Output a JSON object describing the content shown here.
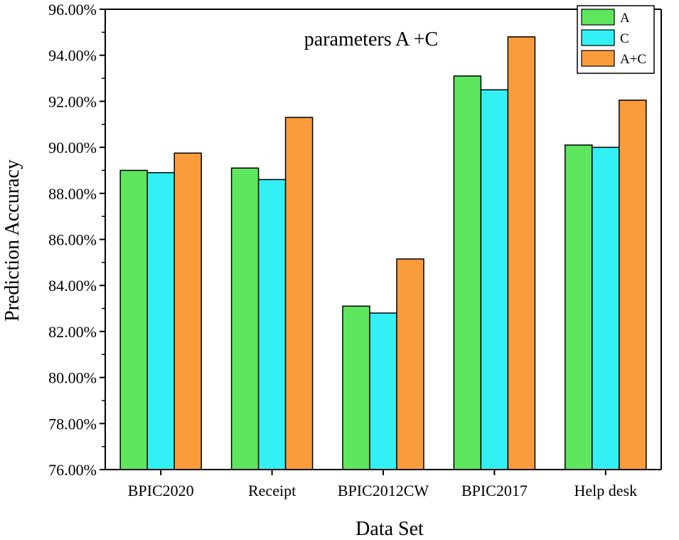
{
  "chart_data": {
    "type": "bar",
    "title": "parameters A +C",
    "xlabel": "Data Set",
    "ylabel": "Prediction Accuracy",
    "categories": [
      "BPIC2020",
      "Receipt",
      "BPIC2012CW",
      "BPIC2017",
      "Help desk"
    ],
    "series": [
      {
        "name": "A",
        "color": "#5ee65e",
        "values": [
          89.0,
          89.1,
          83.1,
          93.1,
          90.1
        ]
      },
      {
        "name": "C",
        "color": "#33f0f5",
        "values": [
          88.9,
          88.6,
          82.8,
          92.5,
          90.0
        ]
      },
      {
        "name": "A+C",
        "color": "#fb9c3c",
        "values": [
          89.75,
          91.3,
          85.15,
          94.8,
          92.05
        ]
      }
    ],
    "ylim": [
      76,
      96
    ],
    "yticks": [
      "76.00%",
      "78.00%",
      "80.00%",
      "82.00%",
      "84.00%",
      "86.00%",
      "88.00%",
      "90.00%",
      "92.00%",
      "94.00%",
      "96.00%"
    ],
    "grid": false,
    "legend_position": "top-right"
  }
}
